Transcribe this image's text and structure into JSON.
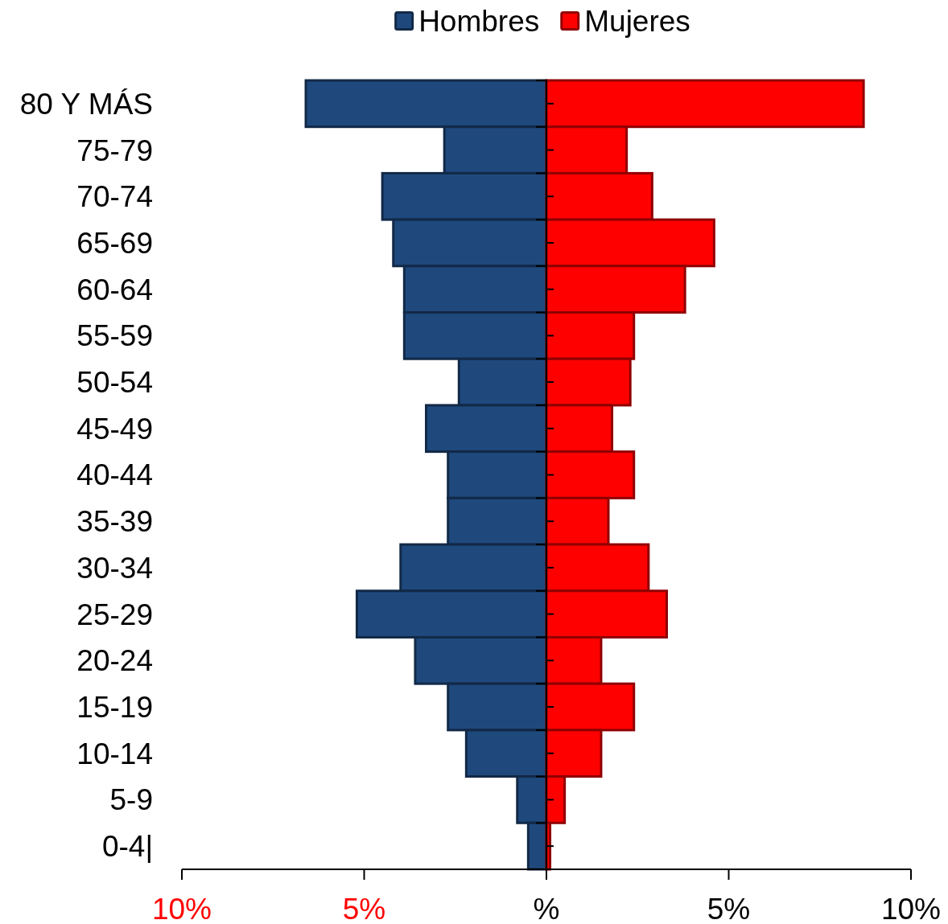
{
  "chart_data": {
    "type": "bar",
    "orientation": "horizontal",
    "stacked": true,
    "categories": [
      "80 Y MÁS",
      "75-79",
      "70-74",
      "65-69",
      "60-64",
      "55-59",
      "50-54",
      "45-49",
      "40-44",
      "35-39",
      "30-34",
      "25-29",
      "20-24",
      "15-19",
      "10-14",
      "5-9",
      "0-4|"
    ],
    "series": [
      {
        "name": "Hombres",
        "color": "#1f497d",
        "values": [
          -6.6,
          -2.8,
          -4.5,
          -4.2,
          -3.9,
          -3.9,
          -2.4,
          -3.3,
          -2.7,
          -2.7,
          -4.0,
          -5.2,
          -3.6,
          -2.7,
          -2.2,
          -0.8,
          -0.5
        ]
      },
      {
        "name": "Mujeres",
        "color": "#ff0000",
        "values": [
          8.7,
          2.2,
          2.9,
          4.6,
          3.8,
          2.4,
          2.3,
          1.8,
          2.4,
          1.7,
          2.8,
          3.3,
          1.5,
          2.4,
          1.5,
          0.5,
          0.1
        ]
      }
    ],
    "xlim": [
      -10,
      10
    ],
    "xticks": [
      {
        "value": -10,
        "label": "10%"
      },
      {
        "value": -5,
        "label": "5%"
      },
      {
        "value": 0,
        "label": "%"
      },
      {
        "value": 5,
        "label": "5%"
      },
      {
        "value": 10,
        "label": "10%"
      }
    ],
    "legend": "top"
  }
}
